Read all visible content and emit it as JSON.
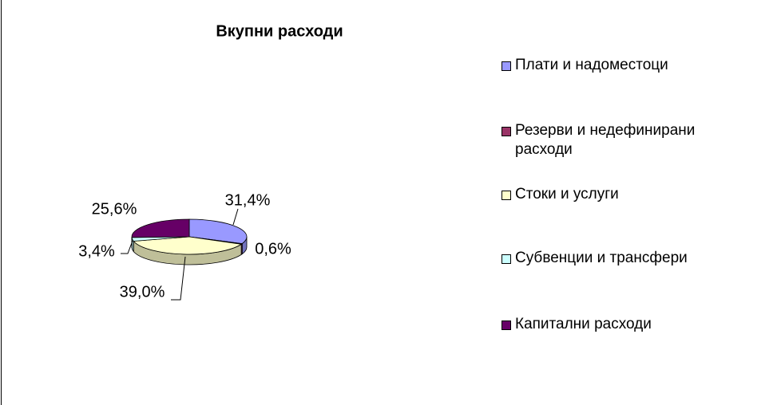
{
  "chart_data": {
    "type": "pie",
    "title": "Вкупни расходи",
    "categories": [
      "Плати и надоместоци",
      "Резерви и недефинирани расходи",
      "Стоки и услуги",
      "Субвенции и трансфери",
      "Капитални расходи"
    ],
    "values": [
      31.4,
      0.6,
      39.0,
      3.4,
      25.6
    ],
    "value_labels": [
      "31,4%",
      "0,6%",
      "39,0%",
      "3,4%",
      "25,6%"
    ],
    "colors": [
      "#9999ff",
      "#993366",
      "#ffffcc",
      "#ccffff",
      "#660066"
    ],
    "legend": "right"
  }
}
